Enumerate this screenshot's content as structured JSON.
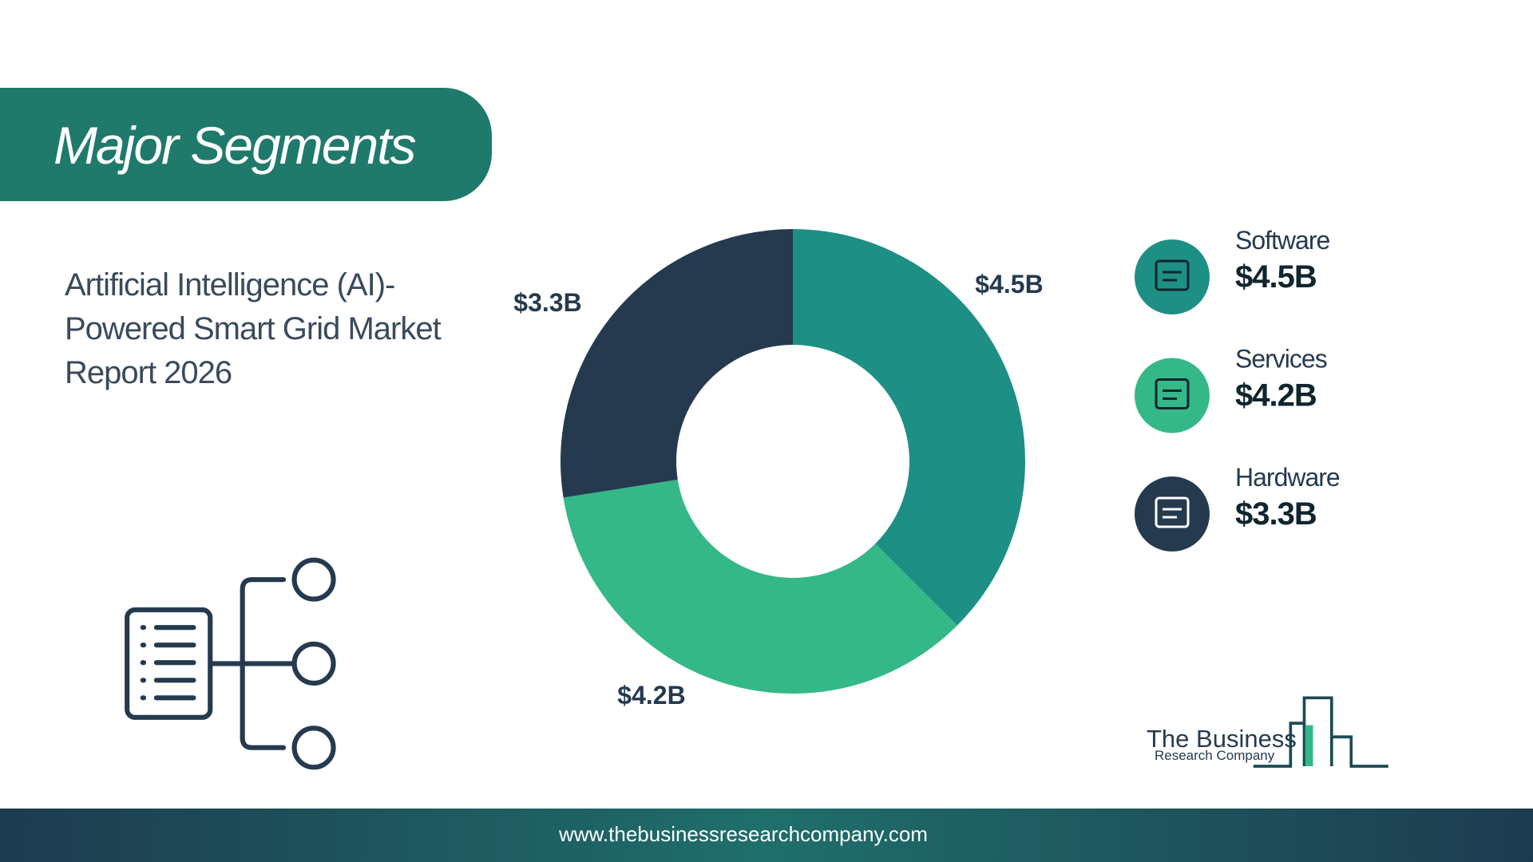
{
  "chart_data": {
    "type": "donut",
    "title": "Major Segments",
    "subtitle": "Artificial Intelligence (AI)-Powered Smart Grid Market Report 2026",
    "categories": [
      "Software",
      "Services",
      "Hardware"
    ],
    "values": [
      4.5,
      4.2,
      3.3
    ],
    "value_labels": [
      "$4.5B",
      "$4.2B",
      "$3.3B"
    ],
    "colors": [
      "#1e8f85",
      "#34b888",
      "#253a4f"
    ]
  },
  "logo": {
    "line1": "The Business",
    "line2": "Research Company"
  },
  "footer": {
    "url": "www.thebusinessresearchcompany.com"
  }
}
